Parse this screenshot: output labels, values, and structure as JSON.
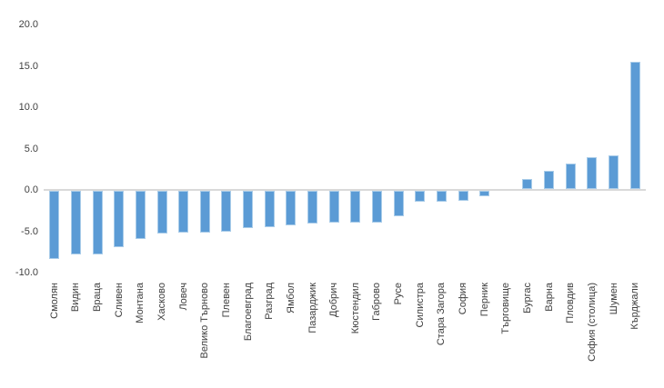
{
  "chart_data": {
    "type": "bar",
    "title": "",
    "categories": [
      "Смолян",
      "Видин",
      "Враца",
      "Сливен",
      "Монтана",
      "Хасково",
      "Ловеч",
      "Велико Търново",
      "Плевен",
      "Благоевград",
      "Разград",
      "Ямбол",
      "Пазарджик",
      "Добрич",
      "Кюстендил",
      "Габрово",
      "Русе",
      "Силистра",
      "Стара Загора",
      "София",
      "Перник",
      "Търговище",
      "Бургас",
      "Варна",
      "Пловдив",
      "София (столица)",
      "Шумен",
      "Кърджали"
    ],
    "values": [
      -8.2,
      -7.7,
      -7.7,
      -6.8,
      -5.8,
      -5.2,
      -5.1,
      -5.0,
      -4.9,
      -4.5,
      -4.4,
      -4.2,
      -4.0,
      -3.8,
      -3.8,
      -3.8,
      -3.1,
      -1.3,
      -1.3,
      -1.2,
      -0.7,
      0.0,
      1.2,
      2.2,
      3.1,
      3.9,
      4.1,
      15.4
    ],
    "xlabel": "",
    "ylabel": "",
    "ylim": [
      -10,
      20
    ],
    "yticks": [
      20,
      15,
      10,
      5,
      0,
      -5,
      -10
    ],
    "ytick_labels": [
      "20.0",
      "15.0",
      "10.0",
      "5.0",
      "0.0",
      "-5.0",
      "-10.0"
    ],
    "grid": false,
    "legend": false,
    "bar_color": "#5b9bd5",
    "bar_border_color": "#a9cce9",
    "axis_line_color": "#d9d9d9",
    "text_color": "#404040",
    "background_color": "#ffffff"
  }
}
